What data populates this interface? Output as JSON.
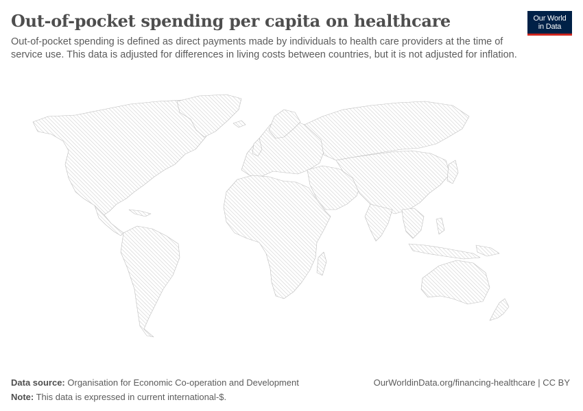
{
  "header": {
    "title": "Out-of-pocket spending per capita on healthcare",
    "subtitle": "Out-of-pocket spending is defined as direct payments made by individuals to health care providers at the time of service use. This data is adjusted for differences in living costs between countries, but it is not adjusted for inflation."
  },
  "logo": {
    "line1": "Our World",
    "line2": "in Data",
    "background_color": "#002147",
    "accent_color": "#ce261e"
  },
  "map": {
    "fill_style": "no-data hatched",
    "hatch_color": "#c9c9c9",
    "border_color": "#bdbdbd"
  },
  "footer": {
    "source_label": "Data source:",
    "source_text": "Organisation for Economic Co-operation and Development",
    "note_label": "Note:",
    "note_text": "This data is expressed in current international-$.",
    "url": "OurWorldinData.org/financing-healthcare",
    "separator": " | ",
    "license": "CC BY"
  }
}
